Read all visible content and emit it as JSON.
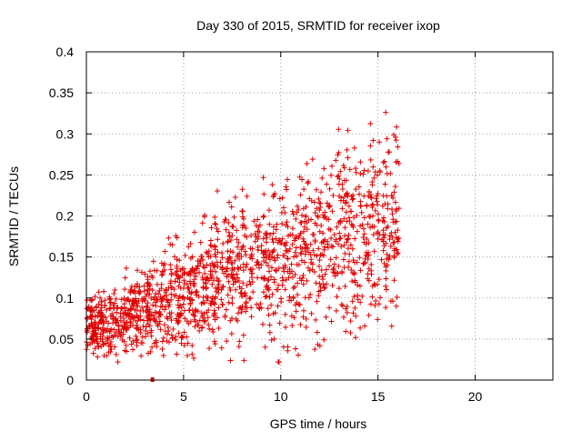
{
  "chart_data": {
    "type": "scatter",
    "title": "Day 330 of 2015, SRMTID for receiver ixop",
    "xlabel": "GPS time / hours",
    "ylabel": "SRMTID / TECUs",
    "xlim": [
      0,
      24
    ],
    "ylim": [
      0,
      0.4
    ],
    "xticks": [
      0,
      5,
      10,
      15,
      20
    ],
    "yticks": [
      0,
      0.05,
      0.1,
      0.15,
      0.2,
      0.25,
      0.3,
      0.35,
      0.4
    ],
    "xtick_labels": [
      "0",
      "5",
      "10",
      "15",
      "20"
    ],
    "ytick_labels": [
      "0",
      "0.05",
      "0.1",
      "0.15",
      "0.2",
      "0.25",
      "0.3",
      "0.35",
      "0.4"
    ],
    "grid": true,
    "marker": "plus",
    "color": "#e00000",
    "trend": [
      [
        0,
        0.065
      ],
      [
        1,
        0.068
      ],
      [
        2,
        0.075
      ],
      [
        3,
        0.09
      ],
      [
        4,
        0.1
      ],
      [
        5,
        0.105
      ],
      [
        6,
        0.12
      ],
      [
        7,
        0.13
      ],
      [
        8,
        0.135
      ],
      [
        9,
        0.14
      ],
      [
        10,
        0.145
      ],
      [
        11,
        0.15
      ],
      [
        12,
        0.16
      ],
      [
        13,
        0.17
      ],
      [
        14,
        0.175
      ],
      [
        15,
        0.19
      ],
      [
        16,
        0.2
      ]
    ],
    "spread": [
      [
        0,
        0.02
      ],
      [
        2,
        0.025
      ],
      [
        4,
        0.035
      ],
      [
        6,
        0.04
      ],
      [
        9,
        0.05
      ],
      [
        12,
        0.06
      ],
      [
        15,
        0.07
      ],
      [
        16,
        0.06
      ]
    ],
    "x_extent": [
      0,
      16.1
    ],
    "approx_point_count": 1600,
    "marked_point": {
      "x": 3.4,
      "y": 0
    }
  }
}
